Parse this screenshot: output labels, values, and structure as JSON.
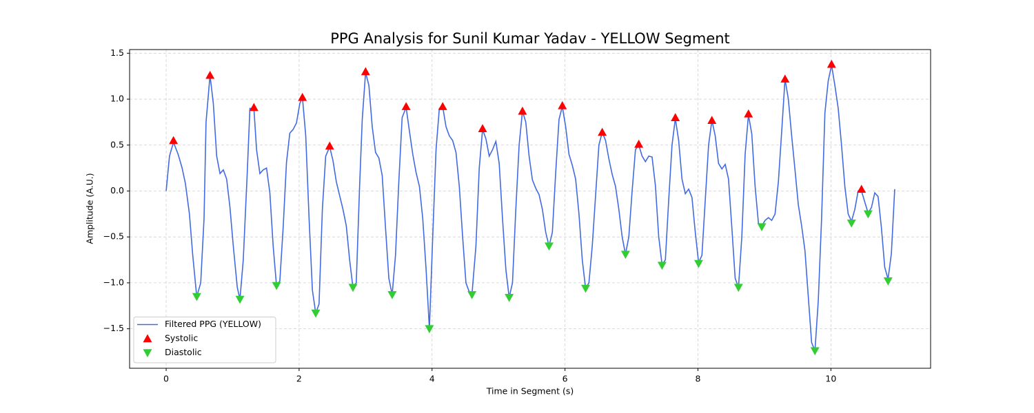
{
  "chart_data": {
    "type": "line",
    "title": "PPG Analysis for Sunil Kumar Yadav - YELLOW Segment",
    "xlabel": "Time in Segment (s)",
    "ylabel": "Amplitude (A.U.)",
    "xlim": [
      -0.55,
      11.5
    ],
    "ylim": [
      -1.93,
      1.54
    ],
    "xticks": [
      0,
      2,
      4,
      6,
      8,
      10
    ],
    "yticks": [
      {
        "value": -1.5,
        "label": "−1.5"
      },
      {
        "value": -1,
        "label": "−1.0"
      },
      {
        "value": -0.5,
        "label": "−0.5"
      },
      {
        "value": 0,
        "label": "0.0"
      },
      0.5,
      {
        "value": 1,
        "label": "1.0"
      },
      1.5
    ],
    "grid": true,
    "legend": "lower left",
    "series": [
      {
        "name": "Filtered PPG (YELLOW)",
        "type": "line",
        "color": "#4169e1",
        "x": [
          0,
          0.05,
          0.11,
          0.18,
          0.24,
          0.29,
          0.35,
          0.4,
          0.46,
          0.52,
          0.57,
          0.6,
          0.66,
          0.71,
          0.76,
          0.81,
          0.86,
          0.91,
          0.96,
          1.01,
          1.07,
          1.11,
          1.16,
          1.22,
          1.26,
          1.32,
          1.36,
          1.41,
          1.46,
          1.51,
          1.56,
          1.61,
          1.66,
          1.71,
          1.76,
          1.81,
          1.86,
          1.91,
          1.96,
          2.01,
          2.05,
          2.1,
          2.15,
          2.2,
          2.25,
          2.3,
          2.35,
          2.4,
          2.46,
          2.51,
          2.56,
          2.61,
          2.66,
          2.71,
          2.76,
          2.81,
          2.86,
          2.91,
          2.95,
          3.0,
          3.05,
          3.1,
          3.15,
          3.2,
          3.25,
          3.3,
          3.35,
          3.4,
          3.45,
          3.5,
          3.55,
          3.61,
          3.66,
          3.71,
          3.76,
          3.81,
          3.86,
          3.91,
          3.96,
          4.01,
          4.06,
          4.11,
          4.16,
          4.21,
          4.26,
          4.31,
          4.36,
          4.41,
          4.46,
          4.51,
          4.56,
          4.6,
          4.66,
          4.71,
          4.76,
          4.81,
          4.86,
          4.91,
          4.96,
          5.01,
          5.06,
          5.11,
          5.16,
          5.21,
          5.26,
          5.31,
          5.36,
          5.41,
          5.46,
          5.51,
          5.56,
          5.61,
          5.66,
          5.71,
          5.76,
          5.81,
          5.86,
          5.91,
          5.96,
          6.01,
          6.06,
          6.11,
          6.16,
          6.21,
          6.26,
          6.31,
          6.36,
          6.41,
          6.46,
          6.51,
          6.56,
          6.61,
          6.66,
          6.71,
          6.76,
          6.81,
          6.86,
          6.91,
          6.96,
          7.01,
          7.06,
          7.11,
          7.16,
          7.21,
          7.26,
          7.31,
          7.36,
          7.41,
          7.46,
          7.51,
          7.56,
          7.61,
          7.66,
          7.71,
          7.76,
          7.81,
          7.86,
          7.91,
          7.96,
          8.01,
          8.06,
          8.11,
          8.16,
          8.21,
          8.26,
          8.31,
          8.36,
          8.41,
          8.46,
          8.51,
          8.56,
          8.61,
          8.66,
          8.71,
          8.76,
          8.81,
          8.86,
          8.91,
          8.96,
          9.01,
          9.06,
          9.11,
          9.16,
          9.21,
          9.26,
          9.31,
          9.36,
          9.41,
          9.46,
          9.51,
          9.56,
          9.61,
          9.66,
          9.71,
          9.76,
          9.81,
          9.86,
          9.91,
          9.96,
          10.01,
          10.06,
          10.11,
          10.16,
          10.21,
          10.26,
          10.31,
          10.36,
          10.41,
          10.46,
          10.51,
          10.56,
          10.61,
          10.66,
          10.71,
          10.76,
          10.81,
          10.86,
          10.91,
          10.96
        ],
        "values": [
          0,
          0.38,
          0.53,
          0.4,
          0.25,
          0.08,
          -0.25,
          -0.7,
          -1.15,
          -1.0,
          -0.3,
          0.75,
          1.26,
          0.95,
          0.38,
          0.19,
          0.23,
          0.13,
          -0.18,
          -0.6,
          -1.05,
          -1.18,
          -0.75,
          0.2,
          0.9,
          0.9,
          0.45,
          0.19,
          0.23,
          0.25,
          -0.02,
          -0.6,
          -1.03,
          -0.98,
          -0.4,
          0.31,
          0.63,
          0.67,
          0.74,
          0.95,
          1.02,
          0.6,
          -0.3,
          -1.08,
          -1.33,
          -1.23,
          -0.2,
          0.38,
          0.48,
          0.33,
          0.1,
          -0.05,
          -0.2,
          -0.38,
          -0.75,
          -1.05,
          -1.0,
          0.05,
          0.78,
          1.29,
          1.15,
          0.7,
          0.42,
          0.36,
          0.17,
          -0.4,
          -0.95,
          -1.13,
          -0.7,
          0.1,
          0.8,
          0.91,
          0.65,
          0.4,
          0.2,
          0.05,
          -0.3,
          -0.85,
          -1.5,
          -0.5,
          0.45,
          0.9,
          0.92,
          0.7,
          0.6,
          0.55,
          0.42,
          0.05,
          -0.5,
          -1.0,
          -1.1,
          -1.13,
          -0.6,
          0.25,
          0.67,
          0.57,
          0.38,
          0.45,
          0.54,
          0.3,
          -0.3,
          -0.85,
          -1.16,
          -1.0,
          -0.2,
          0.5,
          0.87,
          0.75,
          0.38,
          0.12,
          0.03,
          -0.04,
          -0.2,
          -0.45,
          -0.6,
          -0.45,
          0.2,
          0.78,
          0.92,
          0.7,
          0.4,
          0.28,
          0.13,
          -0.25,
          -0.75,
          -1.06,
          -1.0,
          -0.6,
          -0.05,
          0.5,
          0.64,
          0.55,
          0.35,
          0.18,
          0.05,
          -0.2,
          -0.5,
          -0.69,
          -0.5,
          0.0,
          0.45,
          0.5,
          0.38,
          0.32,
          0.38,
          0.37,
          0.06,
          -0.5,
          -0.8,
          -0.75,
          -0.1,
          0.5,
          0.79,
          0.55,
          0.13,
          -0.03,
          0.02,
          -0.07,
          -0.45,
          -0.78,
          -0.7,
          -0.1,
          0.5,
          0.77,
          0.6,
          0.3,
          0.24,
          0.29,
          0.13,
          -0.4,
          -0.95,
          -1.05,
          -0.5,
          0.4,
          0.83,
          0.62,
          0.05,
          -0.35,
          -0.38,
          -0.32,
          -0.29,
          -0.32,
          -0.25,
          0.1,
          0.65,
          1.22,
          1.0,
          0.6,
          0.23,
          -0.15,
          -0.38,
          -0.65,
          -1.15,
          -1.65,
          -1.74,
          -1.2,
          -0.3,
          0.85,
          1.2,
          1.37,
          1.15,
          0.9,
          0.5,
          0.05,
          -0.25,
          -0.33,
          -0.2,
          0.0,
          0.0,
          -0.12,
          -0.24,
          -0.18,
          -0.02,
          -0.06,
          -0.4,
          -0.83,
          -0.96,
          -0.68,
          0.02
        ]
      },
      {
        "name": "Systolic",
        "type": "scatter",
        "marker": "up",
        "color": "#ff0000",
        "x": [
          0.11,
          0.66,
          1.32,
          2.05,
          2.46,
          3.0,
          3.61,
          4.16,
          4.76,
          5.36,
          5.96,
          6.56,
          7.11,
          7.66,
          8.21,
          8.76,
          9.31,
          10.01,
          10.46
        ],
        "values": [
          0.55,
          1.26,
          0.91,
          1.02,
          0.49,
          1.3,
          0.92,
          0.92,
          0.68,
          0.87,
          0.93,
          0.64,
          0.51,
          0.8,
          0.77,
          0.84,
          1.22,
          1.38,
          0.02
        ]
      },
      {
        "name": "Diastolic",
        "type": "scatter",
        "marker": "down",
        "color": "#32cd32",
        "x": [
          0.46,
          1.11,
          1.66,
          2.25,
          2.81,
          3.4,
          3.96,
          4.6,
          5.16,
          5.76,
          6.31,
          6.91,
          7.46,
          8.01,
          8.61,
          8.96,
          9.76,
          10.31,
          10.56,
          10.86
        ],
        "values": [
          -1.15,
          -1.18,
          -1.03,
          -1.33,
          -1.05,
          -1.13,
          -1.5,
          -1.13,
          -1.16,
          -0.6,
          -1.06,
          -0.69,
          -0.81,
          -0.79,
          -1.05,
          -0.39,
          -1.74,
          -0.35,
          -0.25,
          -0.98
        ]
      }
    ]
  }
}
